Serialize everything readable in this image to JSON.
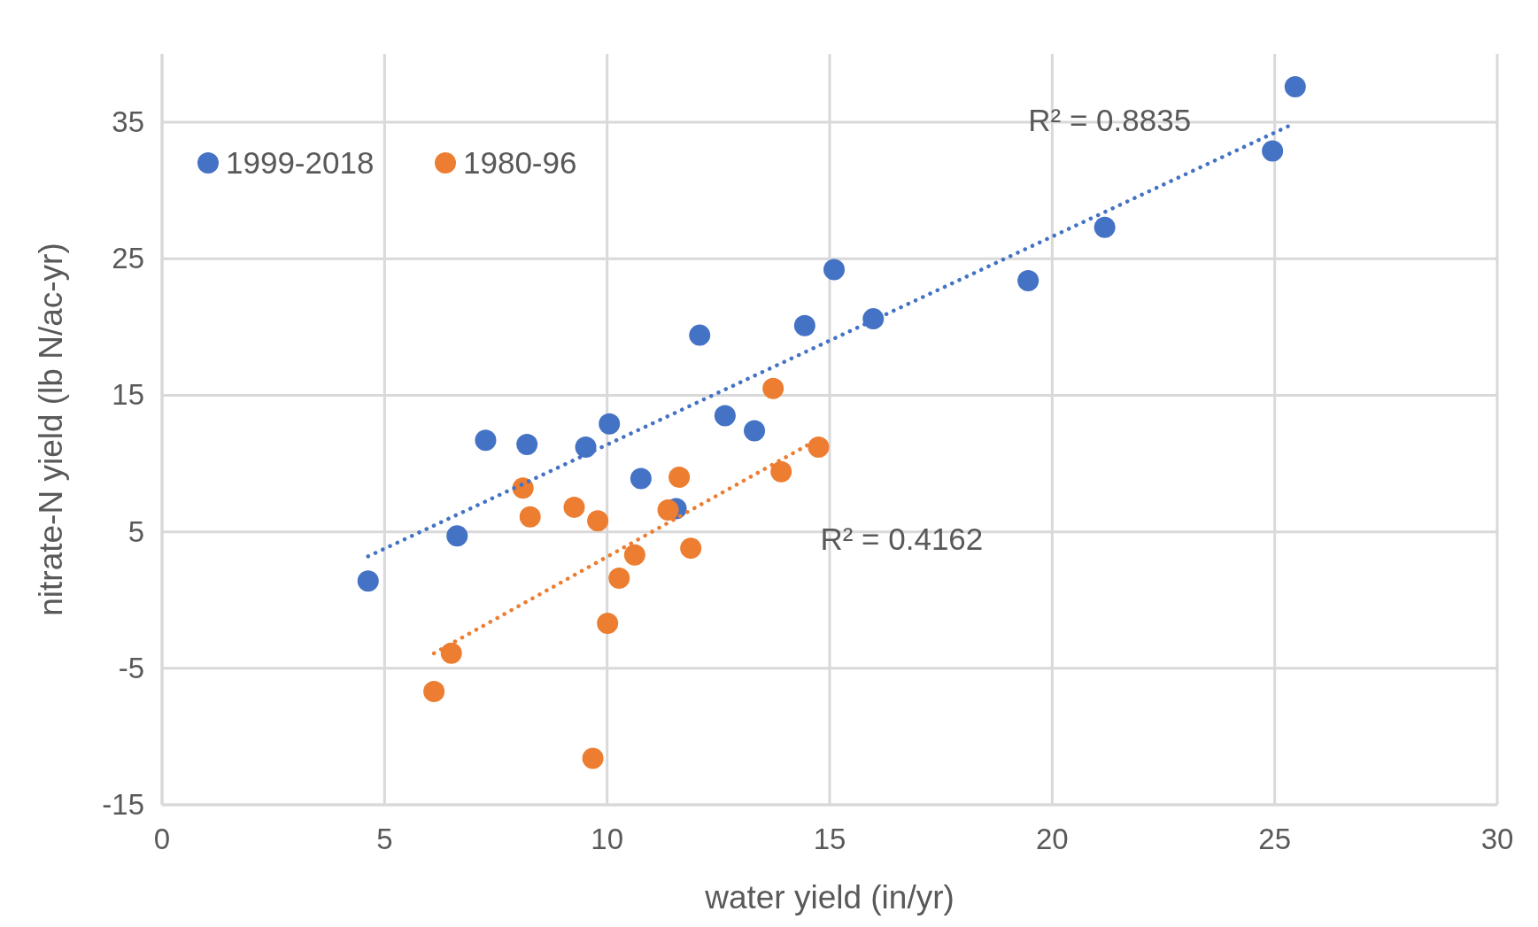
{
  "chart_data": {
    "type": "scatter",
    "xlabel": "water yield (in/yr)",
    "ylabel": "nitrate-N yield (lb N/ac-yr)",
    "xlim": [
      0,
      30
    ],
    "xticks": [
      0,
      5,
      10,
      15,
      20,
      25,
      30
    ],
    "ylim": [
      -15,
      40
    ],
    "yticks": [
      -15,
      -5,
      5,
      15,
      25,
      35
    ],
    "grid": true,
    "legend": "top left",
    "marker": "circle",
    "series": [
      {
        "name": "1999-2018",
        "color": "#4472c4",
        "x": [
          4.63,
          6.63,
          7.27,
          8.2,
          9.52,
          10.05,
          10.76,
          11.55,
          12.08,
          12.65,
          13.31,
          14.44,
          15.1,
          15.98,
          19.46,
          21.18,
          24.95,
          25.46
        ],
        "values": [
          1.4,
          4.7,
          11.7,
          11.4,
          11.2,
          12.9,
          8.9,
          6.7,
          19.4,
          13.5,
          12.4,
          20.1,
          24.2,
          20.6,
          23.4,
          27.3,
          32.9,
          37.6
        ]
      },
      {
        "name": "1980-96",
        "color": "#ed7d31",
        "x": [
          6.11,
          6.5,
          8.11,
          8.27,
          9.26,
          9.79,
          9.68,
          10.01,
          10.27,
          10.62,
          11.37,
          11.62,
          11.88,
          13.73,
          13.91,
          14.75
        ],
        "values": [
          -6.7,
          -3.9,
          8.2,
          6.1,
          6.8,
          5.8,
          -11.6,
          -1.7,
          1.6,
          3.3,
          6.6,
          9.0,
          3.8,
          15.5,
          9.4,
          11.2
        ]
      },
      {
        "type": "line",
        "line_style": "dotted",
        "marker": "none",
        "color": "#4472c4",
        "x": [
          4.63,
          25.43
        ],
        "values": [
          3.2,
          34.9
        ]
      },
      {
        "type": "line",
        "line_style": "dotted",
        "marker": "none",
        "color": "#ed7d31",
        "x": [
          6.11,
          14.75
        ],
        "values": [
          -3.9,
          11.8
        ]
      }
    ],
    "annotations": [
      "R² = 0.8835",
      "R² = 0.4162"
    ]
  }
}
